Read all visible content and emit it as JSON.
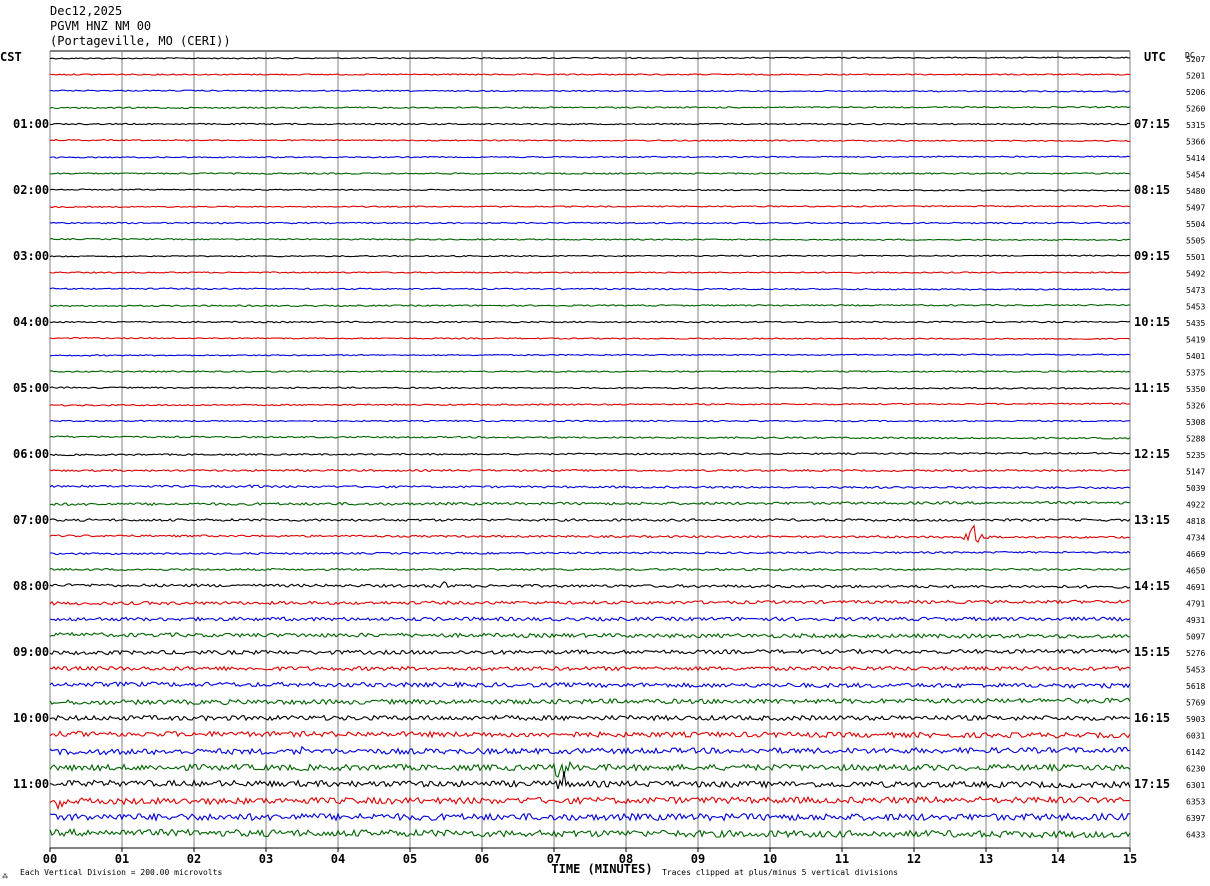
{
  "header": {
    "date": "Dec12,2025",
    "station": "PGVM HNZ NM 00",
    "location": "(Portageville, MO (CERI))"
  },
  "chart_data": {
    "type": "line",
    "title": "Dec12,2025",
    "left_axis_label": "CST",
    "right_axis_label": "UTC",
    "dc_label": "DC",
    "xlabel": "TIME (MINUTES)",
    "x_ticks": [
      "00",
      "01",
      "02",
      "03",
      "04",
      "05",
      "06",
      "07",
      "08",
      "09",
      "10",
      "11",
      "12",
      "13",
      "14",
      "15"
    ],
    "xlim": [
      0,
      15
    ],
    "grid": true,
    "trace_colors": [
      "#000000",
      "#e00000",
      "#0000e0",
      "#006400"
    ],
    "rows": 48,
    "left_time_labels": [
      {
        "row": 4,
        "label": "01:00"
      },
      {
        "row": 8,
        "label": "02:00"
      },
      {
        "row": 12,
        "label": "03:00"
      },
      {
        "row": 16,
        "label": "04:00"
      },
      {
        "row": 20,
        "label": "05:00"
      },
      {
        "row": 24,
        "label": "06:00"
      },
      {
        "row": 28,
        "label": "07:00"
      },
      {
        "row": 32,
        "label": "08:00"
      },
      {
        "row": 36,
        "label": "09:00"
      },
      {
        "row": 40,
        "label": "10:00"
      },
      {
        "row": 44,
        "label": "11:00"
      }
    ],
    "right_time_labels": [
      {
        "row": 4,
        "label": "07:15"
      },
      {
        "row": 8,
        "label": "08:15"
      },
      {
        "row": 12,
        "label": "09:15"
      },
      {
        "row": 16,
        "label": "10:15"
      },
      {
        "row": 20,
        "label": "11:15"
      },
      {
        "row": 24,
        "label": "12:15"
      },
      {
        "row": 28,
        "label": "13:15"
      },
      {
        "row": 32,
        "label": "14:15"
      },
      {
        "row": 36,
        "label": "15:15"
      },
      {
        "row": 40,
        "label": "16:15"
      },
      {
        "row": 44,
        "label": "17:15"
      }
    ],
    "dc_values": [
      "5207",
      "5201",
      "5206",
      "5260",
      "5315",
      "5366",
      "5414",
      "5454",
      "5480",
      "5497",
      "5504",
      "5505",
      "5501",
      "5492",
      "5473",
      "5453",
      "5435",
      "5419",
      "5401",
      "5375",
      "5350",
      "5326",
      "5308",
      "5288",
      "5235",
      "5147",
      "5039",
      "4922",
      "4818",
      "4734",
      "4669",
      "4650",
      "4691",
      "4791",
      "4931",
      "5097",
      "5276",
      "5453",
      "5618",
      "5769",
      "5903",
      "6031",
      "6142",
      "6230",
      "6301",
      "6353",
      "6397",
      "6433"
    ],
    "noise_level": [
      0.6,
      0.6,
      0.6,
      0.7,
      0.7,
      0.6,
      0.6,
      0.7,
      0.6,
      0.6,
      0.7,
      0.6,
      0.6,
      0.6,
      0.7,
      0.7,
      0.7,
      0.6,
      0.6,
      0.7,
      0.7,
      0.7,
      0.7,
      0.8,
      0.8,
      0.9,
      1.0,
      1.3,
      1.2,
      1.0,
      0.9,
      1.0,
      1.4,
      1.6,
      1.8,
      2.0,
      2.0,
      2.0,
      2.2,
      2.4,
      2.4,
      2.6,
      2.8,
      3.0,
      3.0,
      3.2,
      3.4,
      3.4
    ],
    "events": [
      {
        "row": 26,
        "minute": 2.85,
        "amplitude": 8
      },
      {
        "row": 29,
        "minute": 12.85,
        "amplitude": 22
      },
      {
        "row": 29,
        "minute": 11.45,
        "amplitude": 5
      },
      {
        "row": 32,
        "minute": 5.45,
        "amplitude": 6
      },
      {
        "row": 42,
        "minute": 3.45,
        "amplitude": 7
      },
      {
        "row": 43,
        "minute": 7.1,
        "amplitude": 20
      },
      {
        "row": 44,
        "minute": 7.15,
        "amplitude": 14
      },
      {
        "row": 45,
        "minute": 0.1,
        "amplitude": 8
      },
      {
        "row": 47,
        "minute": 6.6,
        "amplitude": 9
      }
    ],
    "footer_left": "Each Vertical Division =  200.00 microvolts",
    "footer_right": "Traces clipped at plus/minus 5 vertical divisions"
  }
}
